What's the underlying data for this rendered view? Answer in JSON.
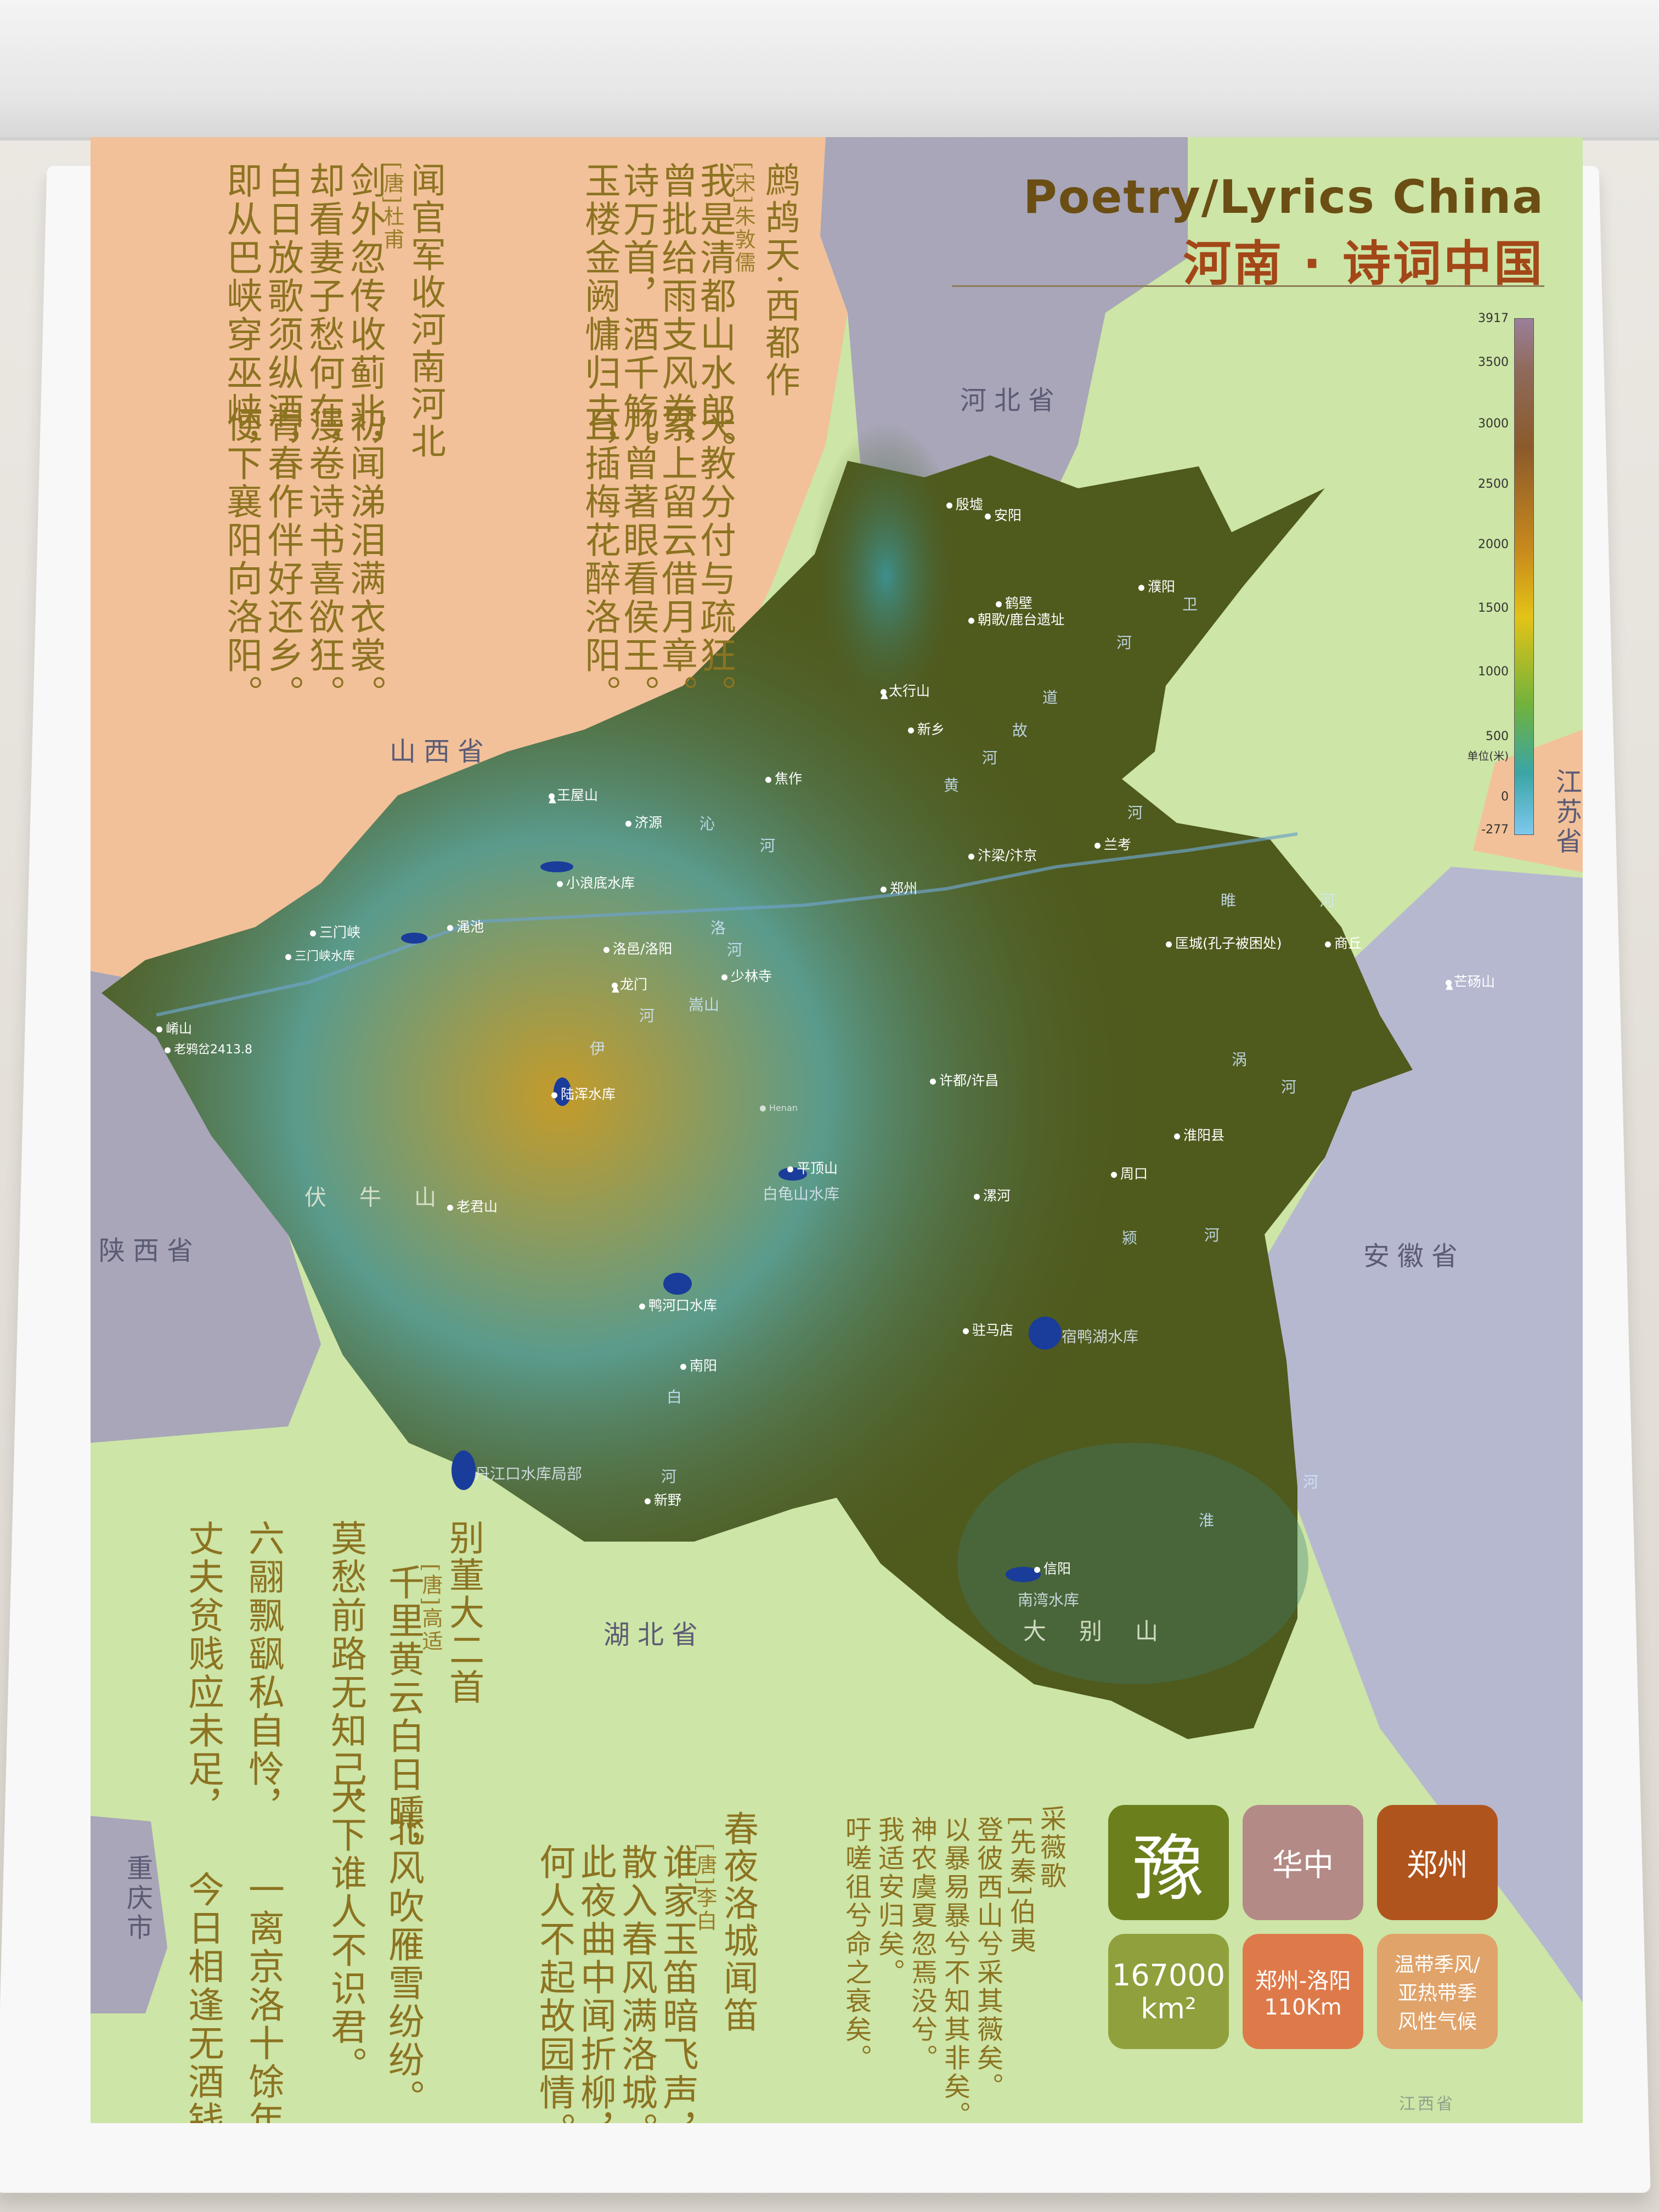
{
  "header": {
    "en": "Poetry/Lyrics China",
    "zh": "河南 · 诗词中国"
  },
  "legend": {
    "ticks": [
      "3917",
      "3500",
      "3000",
      "2500",
      "2000",
      "1500",
      "1000",
      "500",
      "单位(米)",
      "0",
      "-277"
    ]
  },
  "provinces": {
    "hebei": "河北省",
    "shanxi": "山西省",
    "shaanxi": "陕西省",
    "hubei": "湖北省",
    "anhui": "安徽省",
    "jiangsu": "江苏省",
    "chongqing": "重庆市",
    "jiangxi": "江西省"
  },
  "poems": {
    "p1": {
      "title": "闻官军收河南河北",
      "author": "[唐]杜甫",
      "lines": [
        "剑外忽传收蓟北，",
        "初闻涕泪满衣裳。",
        "却看妻子愁何在，",
        "漫卷诗书喜欲狂。",
        "白日放歌须纵酒，",
        "青春作伴好还乡。",
        "即从巴峡穿巫峡，",
        "便下襄阳向洛阳。"
      ]
    },
    "p2": {
      "title": "鹧鸪天·西都作",
      "author": "[宋]朱敦儒",
      "lines": [
        "我是清都山水郎。",
        "天教分付与疏狂。",
        "曾批给雨支风券，",
        "累上留云借月章。",
        "诗万首，酒千觞。",
        "几曾著眼看侯王。",
        "玉楼金阙慵归去，",
        "且插梅花醉洛阳。"
      ]
    },
    "p3": {
      "title": "别董大二首",
      "author": "[唐]高适",
      "lines": [
        "千里黄云白日曛，",
        "北风吹雁雪纷纷。",
        "莫愁前路无知己，",
        "天下谁人不识君。",
        "六翮飘飖私自怜，",
        "一离京洛十馀年。",
        "丈夫贫贱应未足，",
        "今日相逢无酒钱。"
      ]
    },
    "p4": {
      "title": "春夜洛城闻笛",
      "author": "[唐]李白",
      "lines": [
        "谁家玉笛暗飞声，",
        "散入春风满洛城。",
        "此夜曲中闻折柳，",
        "何人不起故园情。"
      ]
    },
    "p5": {
      "title": "采薇歌",
      "author": "[先秦]伯夷",
      "lines": [
        "登彼西山兮采其薇矣。",
        "以暴易暴兮不知其非矣。",
        "神农虞夏忽焉没兮。",
        "我适安归矣。",
        "吁嗟徂兮命之衰矣。"
      ]
    }
  },
  "cities": {
    "yinxu": "殷墟",
    "anyang": "安阳",
    "puyang": "濮阳",
    "hebi": "鹤壁",
    "zhaoge": "朝歌/鹿台遗址",
    "taihang": "太行山",
    "xinxiang": "新乡",
    "jiaozuo": "焦作",
    "jiyuan": "济源",
    "wangwu": "王屋山",
    "xiaolangdi": "小浪底水库",
    "sanmenxia": "三门峡",
    "sanmenxia_res": "三门峡水库",
    "mianchi": "渑池",
    "luoyang": "洛邑/洛阳",
    "longmen": "龙门",
    "shaolin": "少林寺",
    "songshan": "嵩山",
    "zhengzhou": "郑州",
    "bianliang": "汴梁/汴京",
    "lankao": "兰考",
    "kuangcheng": "匡城(孔子被困处)",
    "shangqiu": "商丘",
    "mangdang": "芒砀山",
    "xuchang": "许都/许昌",
    "huaiyang": "淮阳县",
    "zhoukou": "周口",
    "luohe": "漯河",
    "pingdingshan": "平顶山",
    "baiguishan": "白龟山水库",
    "lushui": "陆浑水库",
    "laojun": "老君山",
    "laoyacha": "老鸦岔2413.8",
    "xiaoshan": "崤山",
    "funiu": "伏牛山",
    "yahekou": "鸭河口水库",
    "nanyang": "南阳",
    "xinye": "新野",
    "zhumadian": "驻马店",
    "suyahu": "宿鸭湖水库",
    "danjiangkou": "丹江口水库局部",
    "xinyang": "信阳",
    "nanwan": "南湾水库",
    "dabie": "大别山",
    "henan": "Henan"
  },
  "rivers": [
    "卫",
    "河",
    "道",
    "故",
    "河",
    "黄",
    "河",
    "沁",
    "河",
    "洛",
    "河",
    "伊",
    "河",
    "颍",
    "河",
    "涡",
    "河",
    "淮",
    "河",
    "白",
    "河",
    "睢",
    "河"
  ],
  "badges": {
    "abbr": "豫",
    "region": "华中",
    "capital": "郑州",
    "area_num": "167000",
    "area_unit": "km²",
    "distance": "郑州-洛阳 110Km",
    "climate": "温带季风/亚热带季风性气候"
  },
  "colors": {
    "henan_low": "#4f5a1d",
    "henan_mid": "#3f8f86",
    "henan_high": "#c49b2a",
    "shanxi": "#f2c199",
    "hebei": "#a8a6b8",
    "green": "#cde5a6",
    "anhui": "#b6b8cf",
    "text_gold": "#8c7321",
    "badge_olive": "#6b7f1d",
    "badge_mauve": "#b38a86",
    "badge_rust": "#b0541d",
    "badge_olive_light": "#8fa03d",
    "badge_orange": "#de7a4a",
    "badge_sand": "#e0a36a"
  }
}
